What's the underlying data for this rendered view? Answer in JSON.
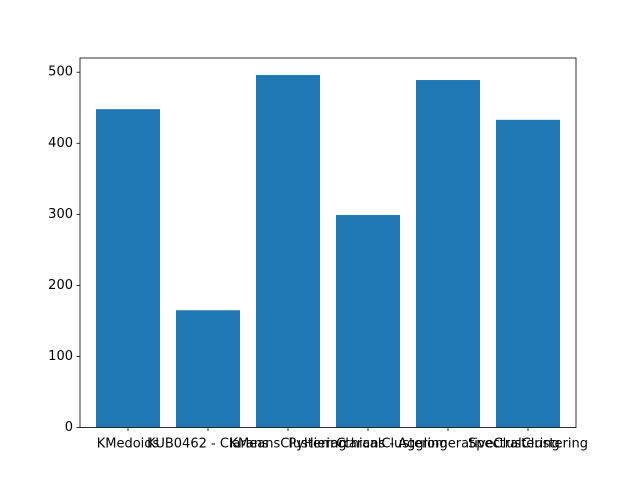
{
  "chart_data": {
    "type": "bar",
    "title": "",
    "xlabel": "",
    "ylabel": "",
    "categories": [
      "KMedoids",
      "KUB0462 - Clarans",
      "KMeansClustering",
      "PyHierarchicalClustering",
      "Clarans - AgglomerativeClustering",
      "SpectralClustering"
    ],
    "values": [
      448,
      165,
      496,
      299,
      489,
      433
    ],
    "ylim": [
      0,
      520
    ],
    "yticks": [
      0,
      100,
      200,
      300,
      400,
      500
    ],
    "bar_color": "#1f77b4",
    "grid": false,
    "legend": "none"
  }
}
